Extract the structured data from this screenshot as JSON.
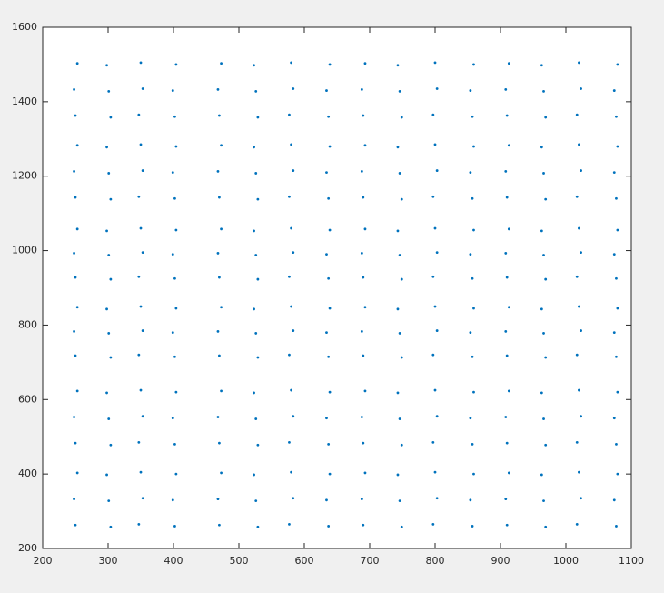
{
  "chart_data": {
    "type": "scatter",
    "color": "#0072bd",
    "xlim": [
      200,
      1100
    ],
    "ylim": [
      200,
      1600
    ],
    "xticks": [
      200,
      300,
      400,
      500,
      600,
      700,
      800,
      900,
      1000,
      1100
    ],
    "yticks": [
      200,
      400,
      600,
      800,
      1000,
      1200,
      1400,
      1600
    ],
    "x": [
      250,
      304,
      347,
      402,
      248,
      301,
      353,
      399,
      253,
      298,
      350,
      404,
      470,
      529,
      577,
      637,
      468,
      526,
      583,
      634,
      473,
      523,
      580,
      639,
      690,
      749,
      797,
      857,
      688,
      746,
      803,
      854,
      693,
      743,
      800,
      859,
      910,
      969,
      1017,
      1077,
      908,
      966,
      1023,
      1074,
      913,
      963,
      1020,
      1079,
      250,
      304,
      347,
      402,
      248,
      301,
      353,
      399,
      253,
      298,
      350,
      404,
      470,
      529,
      577,
      637,
      468,
      526,
      583,
      634,
      473,
      523,
      580,
      639,
      690,
      749,
      797,
      857,
      688,
      746,
      803,
      854,
      693,
      743,
      800,
      859,
      910,
      969,
      1017,
      1077,
      908,
      966,
      1023,
      1074,
      913,
      963,
      1020,
      1079,
      250,
      304,
      347,
      402,
      248,
      301,
      353,
      399,
      253,
      298,
      350,
      404,
      470,
      529,
      577,
      637,
      468,
      526,
      583,
      634,
      473,
      523,
      580,
      639,
      690,
      749,
      797,
      857,
      688,
      746,
      803,
      854,
      693,
      743,
      800,
      859,
      910,
      969,
      1017,
      1077,
      908,
      966,
      1023,
      1074,
      913,
      963,
      1020,
      1079,
      250,
      304,
      347,
      402,
      248,
      301,
      353,
      399,
      253,
      298,
      350,
      404,
      470,
      529,
      577,
      637,
      468,
      526,
      583,
      634,
      473,
      523,
      580,
      639,
      690,
      749,
      797,
      857,
      688,
      746,
      803,
      854,
      693,
      743,
      800,
      859,
      910,
      969,
      1017,
      1077,
      908,
      966,
      1023,
      1074,
      913,
      963,
      1020,
      1079,
      250,
      304,
      347,
      402,
      248,
      301,
      353,
      399,
      253,
      298,
      350,
      404,
      470,
      529,
      577,
      637,
      468,
      526,
      583,
      634,
      473,
      523,
      580,
      639,
      690,
      749,
      797,
      857,
      688,
      746,
      803,
      854,
      693,
      743,
      800,
      859,
      910,
      969,
      1017,
      1077,
      908,
      966,
      1023,
      1074,
      913,
      963,
      1020,
      1079,
      250,
      304,
      347,
      402,
      248,
      301,
      353,
      399,
      253,
      298,
      350,
      404,
      470,
      529,
      577,
      637,
      468,
      526,
      583,
      634,
      473,
      523,
      580,
      639,
      690,
      749,
      797,
      857,
      688,
      746,
      803,
      854,
      693,
      743,
      800,
      859,
      910,
      969,
      1017,
      1077,
      908,
      966,
      1023,
      1074,
      913,
      963,
      1020,
      1079
    ],
    "y": [
      1363,
      1358,
      1365,
      1360,
      1433,
      1428,
      1435,
      1430,
      1503,
      1498,
      1505,
      1500,
      1363,
      1358,
      1365,
      1360,
      1433,
      1428,
      1435,
      1430,
      1503,
      1498,
      1505,
      1500,
      1363,
      1358,
      1365,
      1360,
      1433,
      1428,
      1435,
      1430,
      1503,
      1498,
      1505,
      1500,
      1363,
      1358,
      1365,
      1360,
      1433,
      1428,
      1435,
      1430,
      1503,
      1498,
      1505,
      1500,
      1143,
      1138,
      1145,
      1140,
      1213,
      1208,
      1215,
      1210,
      1283,
      1278,
      1285,
      1280,
      1143,
      1138,
      1145,
      1140,
      1213,
      1208,
      1215,
      1210,
      1283,
      1278,
      1285,
      1280,
      1143,
      1138,
      1145,
      1140,
      1213,
      1208,
      1215,
      1210,
      1283,
      1278,
      1285,
      1280,
      1143,
      1138,
      1145,
      1140,
      1213,
      1208,
      1215,
      1210,
      1283,
      1278,
      1285,
      1280,
      928,
      923,
      930,
      925,
      993,
      988,
      995,
      990,
      1058,
      1053,
      1060,
      1055,
      928,
      923,
      930,
      925,
      993,
      988,
      995,
      990,
      1058,
      1053,
      1060,
      1055,
      928,
      923,
      930,
      925,
      993,
      988,
      995,
      990,
      1058,
      1053,
      1060,
      1055,
      928,
      923,
      930,
      925,
      993,
      988,
      995,
      990,
      1058,
      1053,
      1060,
      1055,
      718,
      713,
      720,
      715,
      783,
      778,
      785,
      780,
      848,
      843,
      850,
      845,
      718,
      713,
      720,
      715,
      783,
      778,
      785,
      780,
      848,
      843,
      850,
      845,
      718,
      713,
      720,
      715,
      783,
      778,
      785,
      780,
      848,
      843,
      850,
      845,
      718,
      713,
      720,
      715,
      783,
      778,
      785,
      780,
      848,
      843,
      850,
      845,
      483,
      478,
      485,
      480,
      553,
      548,
      555,
      550,
      623,
      618,
      625,
      620,
      483,
      478,
      485,
      480,
      553,
      548,
      555,
      550,
      623,
      618,
      625,
      620,
      483,
      478,
      485,
      480,
      553,
      548,
      555,
      550,
      623,
      618,
      625,
      620,
      483,
      478,
      485,
      480,
      553,
      548,
      555,
      550,
      623,
      618,
      625,
      620,
      263,
      258,
      265,
      260,
      333,
      328,
      335,
      330,
      403,
      398,
      405,
      400,
      263,
      258,
      265,
      260,
      333,
      328,
      335,
      330,
      403,
      398,
      405,
      400,
      263,
      258,
      265,
      260,
      333,
      328,
      335,
      330,
      403,
      398,
      405,
      400,
      263,
      258,
      265,
      260,
      333,
      328,
      335,
      330,
      403,
      398,
      405,
      400
    ]
  }
}
